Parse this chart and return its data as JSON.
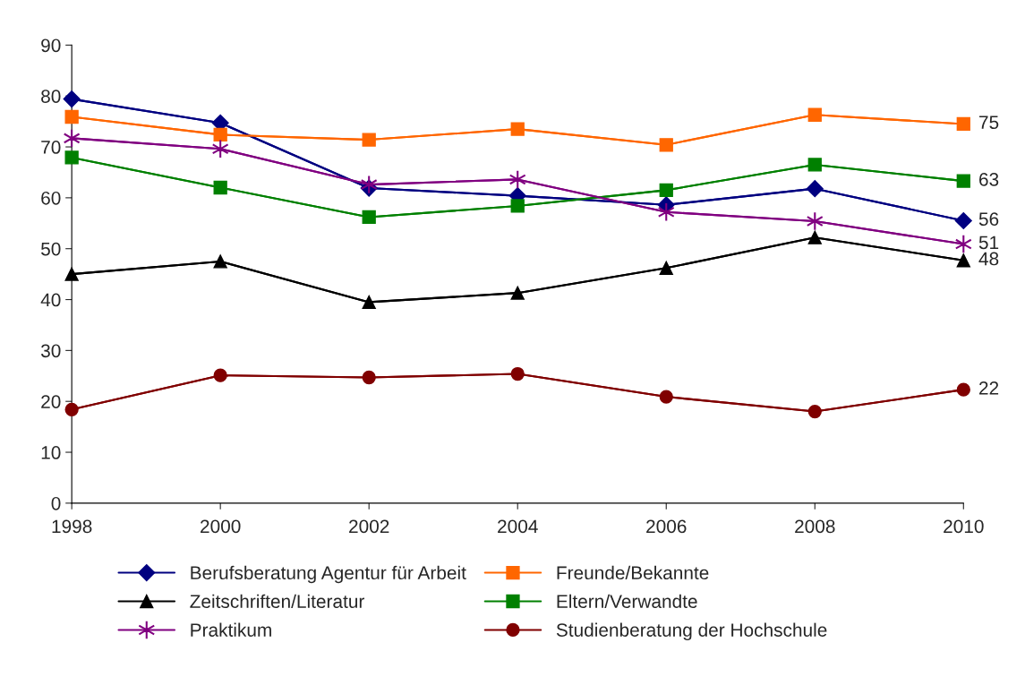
{
  "chart_data": {
    "type": "line",
    "x": [
      1998,
      2000,
      2002,
      2004,
      2006,
      2008,
      2010
    ],
    "xlim": [
      1998,
      2010
    ],
    "xticks": [
      1998,
      2000,
      2002,
      2004,
      2006,
      2008,
      2010
    ],
    "ylim": [
      0,
      90
    ],
    "yticks": [
      0,
      10,
      20,
      30,
      40,
      50,
      60,
      70,
      80,
      90
    ],
    "grid": false,
    "legend": "bottom",
    "series": [
      {
        "name": "Berufsberatung Agentur für Arbeit",
        "color": "#000080",
        "marker": "diamond",
        "values": [
          79.4,
          74.7,
          61.9,
          60.4,
          58.6,
          61.8,
          55.5
        ],
        "value_labels": [
          null,
          null,
          null,
          null,
          null,
          null,
          "56"
        ]
      },
      {
        "name": "Freunde/Bekannte",
        "color": "#ff6600",
        "marker": "square",
        "values": [
          75.9,
          72.4,
          71.4,
          73.5,
          70.4,
          76.3,
          74.5
        ],
        "value_labels": [
          null,
          null,
          null,
          null,
          null,
          null,
          "75"
        ]
      },
      {
        "name": "Zeitschriften/Literatur",
        "color": "#000000",
        "marker": "triangle",
        "values": [
          45.0,
          47.5,
          39.5,
          41.3,
          46.2,
          52.2,
          47.7
        ],
        "value_labels": [
          null,
          null,
          null,
          null,
          null,
          null,
          "48"
        ]
      },
      {
        "name": "Eltern/Verwandte",
        "color": "#008000",
        "marker": "square",
        "values": [
          67.9,
          62.0,
          56.2,
          58.4,
          61.5,
          66.5,
          63.3
        ],
        "value_labels": [
          null,
          null,
          null,
          null,
          null,
          null,
          "63"
        ]
      },
      {
        "name": "Praktikum",
        "color": "#800080",
        "marker": "cross",
        "values": [
          71.7,
          69.6,
          62.6,
          63.6,
          57.2,
          55.4,
          50.9
        ],
        "value_labels": [
          null,
          null,
          null,
          null,
          null,
          null,
          "51"
        ]
      },
      {
        "name": "Studienberatung der Hochschule",
        "color": "#800000",
        "marker": "circle",
        "values": [
          18.4,
          25.1,
          24.7,
          25.4,
          20.9,
          18.0,
          22.3
        ],
        "value_labels": [
          null,
          null,
          null,
          null,
          null,
          null,
          "22"
        ]
      }
    ]
  }
}
